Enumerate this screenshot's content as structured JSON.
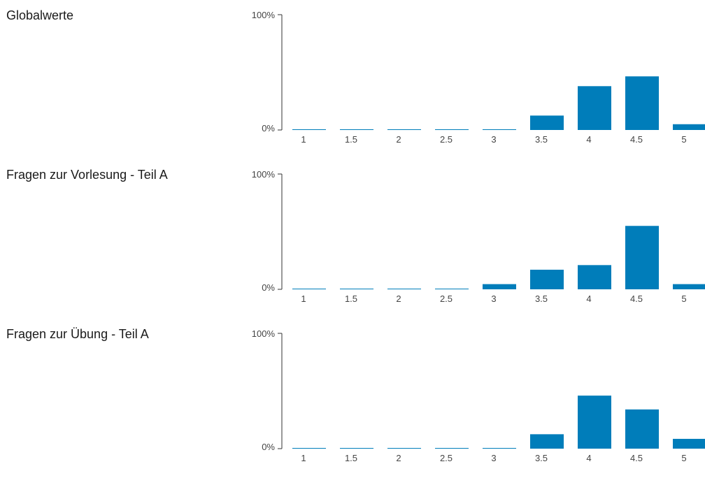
{
  "colors": {
    "bar": "#007dba",
    "axis": "#333333",
    "text": "#444444"
  },
  "chart_data": [
    {
      "type": "bar",
      "title": "Globalwerte",
      "categories": [
        "1",
        "1.5",
        "2",
        "2.5",
        "3",
        "3.5",
        "4",
        "4.5",
        "5"
      ],
      "values": [
        0.5,
        0.5,
        0.5,
        0.5,
        0.5,
        12.5,
        38,
        46.5,
        5
      ],
      "ylim": [
        0,
        100
      ],
      "yticks": [
        "100%",
        "0%"
      ]
    },
    {
      "type": "bar",
      "title": "Fragen zur Vorlesung - Teil A",
      "categories": [
        "1",
        "1.5",
        "2",
        "2.5",
        "3",
        "3.5",
        "4",
        "4.5",
        "5"
      ],
      "values": [
        0.5,
        0.5,
        0.5,
        0.5,
        4.5,
        17,
        21,
        55,
        4.5
      ],
      "ylim": [
        0,
        100
      ],
      "yticks": [
        "100%",
        "0%"
      ]
    },
    {
      "type": "bar",
      "title": "Fragen zur Übung - Teil A",
      "categories": [
        "1",
        "1.5",
        "2",
        "2.5",
        "3",
        "3.5",
        "4",
        "4.5",
        "5"
      ],
      "values": [
        0.5,
        0.5,
        0.5,
        0.5,
        0.5,
        12.5,
        46,
        34,
        8.5
      ],
      "ylim": [
        0,
        100
      ],
      "yticks": [
        "100%",
        "0%"
      ]
    }
  ]
}
